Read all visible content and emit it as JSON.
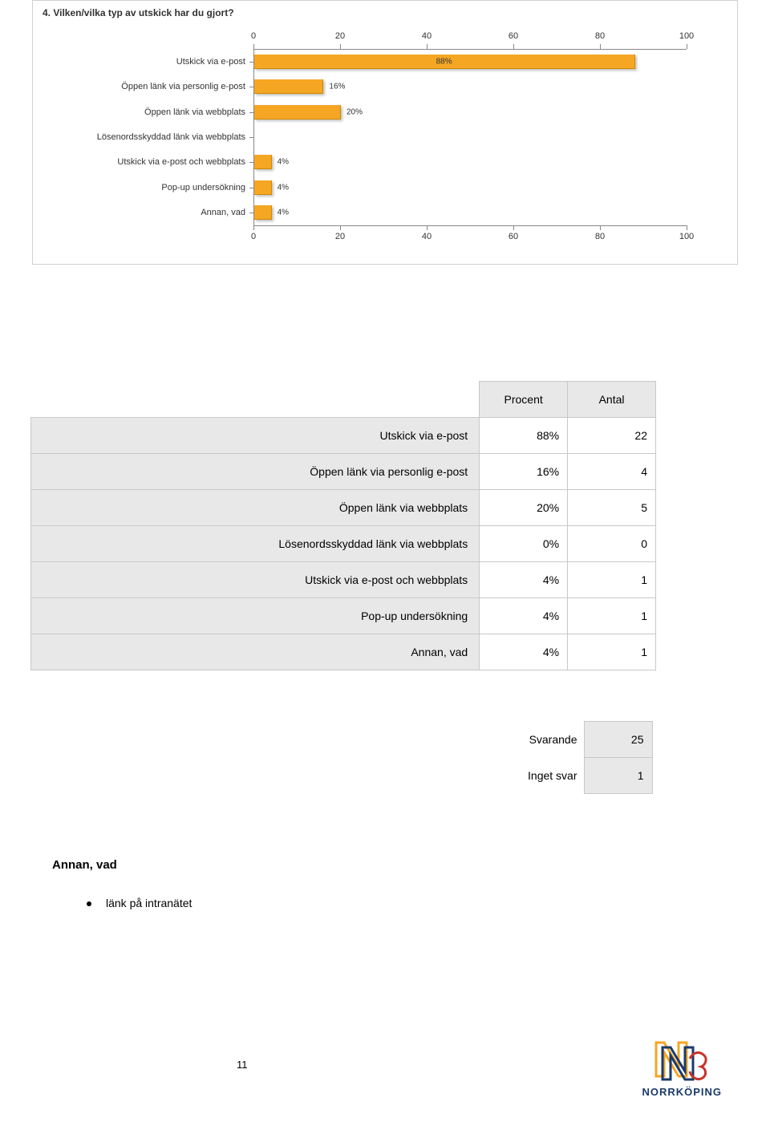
{
  "chart": {
    "title": "4. Vilken/vilka typ av utskick har du gjort?",
    "type": "bar-horizontal",
    "xlim": [
      0,
      100
    ],
    "xticks": [
      0,
      20,
      40,
      60,
      80,
      100
    ],
    "categories": [
      "Utskick via e-post",
      "Öppen länk via personlig e-post",
      "Öppen länk via webbplats",
      "Lösenordsskyddad länk via webbplats",
      "Utskick via e-post och webbplats",
      "Pop-up undersökning",
      "Annan, vad"
    ],
    "values": [
      88,
      16,
      20,
      0,
      4,
      4,
      4
    ],
    "bar_labels": [
      "88%",
      "16%",
      "20%",
      "",
      "4%",
      "4%",
      "4%"
    ],
    "bar_color": "#f5a623",
    "axis_color": "#888888",
    "label_fontsize": 11
  },
  "table": {
    "headers": [
      "Procent",
      "Antal"
    ],
    "rows": [
      {
        "label": "Utskick via e-post",
        "pct": "88%",
        "n": "22"
      },
      {
        "label": "Öppen länk via personlig e-post",
        "pct": "16%",
        "n": "4"
      },
      {
        "label": "Öppen länk via webbplats",
        "pct": "20%",
        "n": "5"
      },
      {
        "label": "Lösenordsskyddad länk via webbplats",
        "pct": "0%",
        "n": "0"
      },
      {
        "label": "Utskick via e-post och webbplats",
        "pct": "4%",
        "n": "1"
      },
      {
        "label": "Pop-up undersökning",
        "pct": "4%",
        "n": "1"
      },
      {
        "label": "Annan, vad",
        "pct": "4%",
        "n": "1"
      }
    ],
    "summary": [
      {
        "label": "Svarande",
        "value": "25"
      },
      {
        "label": "Inget svar",
        "value": "1"
      }
    ]
  },
  "freetext": {
    "heading": "Annan, vad",
    "items": [
      "länk på intranätet"
    ]
  },
  "page_number": "11",
  "logo": {
    "text": "NORRKÖPING",
    "colors": [
      "#f5a623",
      "#1a3a6a",
      "#c6332a"
    ]
  }
}
